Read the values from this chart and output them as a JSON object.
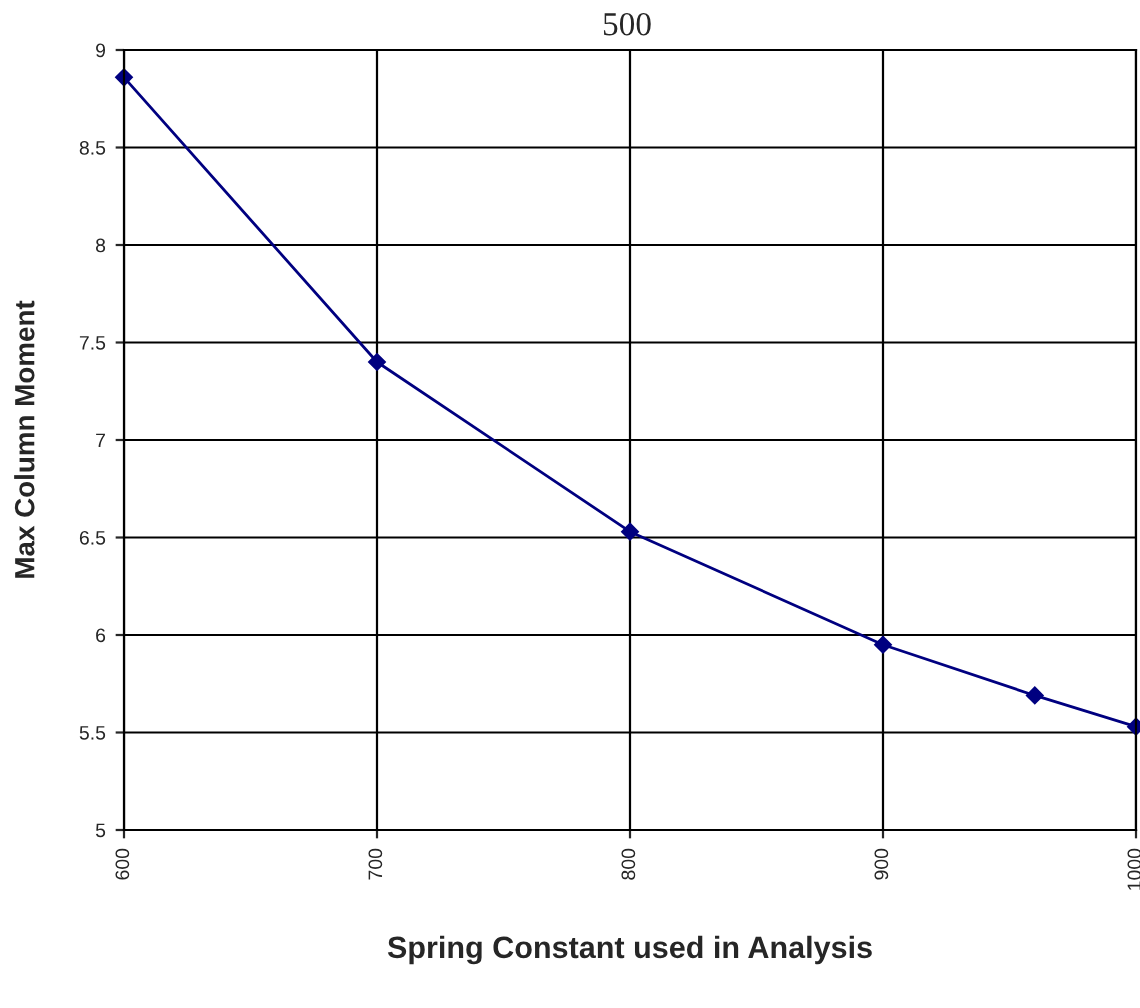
{
  "chart_data": {
    "type": "line",
    "title": "500",
    "xlabel": "Spring Constant used in Analysis",
    "ylabel": "Max Column Moment",
    "x": [
      600,
      700,
      800,
      900,
      960,
      1000
    ],
    "series": [
      {
        "color": "#000080",
        "values": [
          8.86,
          7.4,
          6.53,
          5.95,
          5.69,
          5.53
        ]
      }
    ],
    "xlim": [
      600,
      1000
    ],
    "xticks": [
      600,
      700,
      800,
      900,
      1000
    ],
    "ylim": [
      5,
      9
    ],
    "yticks": [
      5,
      5.5,
      6,
      6.5,
      7,
      7.5,
      8,
      8.5,
      9
    ],
    "grid": true,
    "marker": "diamond",
    "line_style": "solid",
    "legend": false
  }
}
